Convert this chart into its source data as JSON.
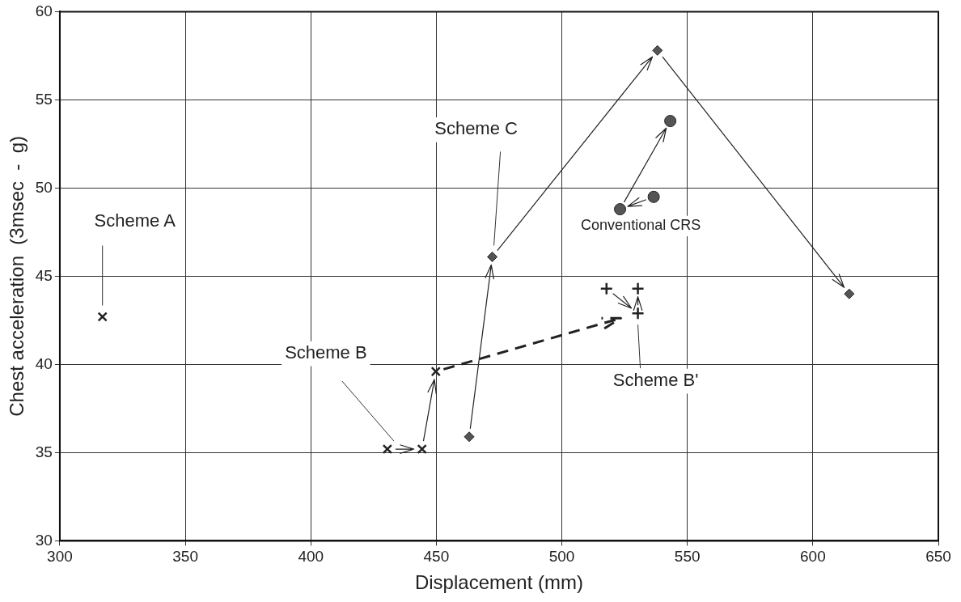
{
  "chart_data": {
    "type": "scatter",
    "xlabel": "Displacement (mm)",
    "ylabel": "Chest acceleration  (3msec  -  g)",
    "xlim": [
      300,
      650
    ],
    "xticks": [
      300,
      350,
      400,
      450,
      500,
      550,
      600,
      650
    ],
    "ylim": [
      30,
      60
    ],
    "yticks": [
      30,
      35,
      40,
      45,
      50,
      55,
      60
    ],
    "grid": true,
    "legend": false,
    "annotations": [
      "Scheme A",
      "Scheme B",
      "Scheme B'",
      "Scheme C",
      {
        "text": "Conventional CRS",
        "x": 536.6,
        "y": 49.5
      }
    ],
    "series": [
      {
        "color": "#222222",
        "marker": "cross",
        "x": [
          317
        ],
        "values": [
          42.7
        ]
      },
      {
        "color": "#222222",
        "marker": "cross",
        "x": [
          430.5,
          444.3,
          449.8
        ],
        "values": [
          35.2,
          35.2,
          39.6
        ]
      },
      {
        "color": "#222222",
        "marker": "plus",
        "x": [
          517.8,
          530.3,
          530.3
        ],
        "values": [
          44.3,
          42.9,
          44.3
        ]
      },
      {
        "color": "#555555",
        "marker": "diamond",
        "x": [
          463.1,
          472.3,
          538.1,
          614.5
        ],
        "values": [
          35.9,
          46.1,
          57.8,
          44.0
        ]
      },
      {
        "color": "#555555",
        "marker": "circle",
        "x": [
          536.6,
          523.2,
          543.2
        ],
        "values": [
          49.5,
          48.8,
          53.8
        ]
      }
    ]
  }
}
